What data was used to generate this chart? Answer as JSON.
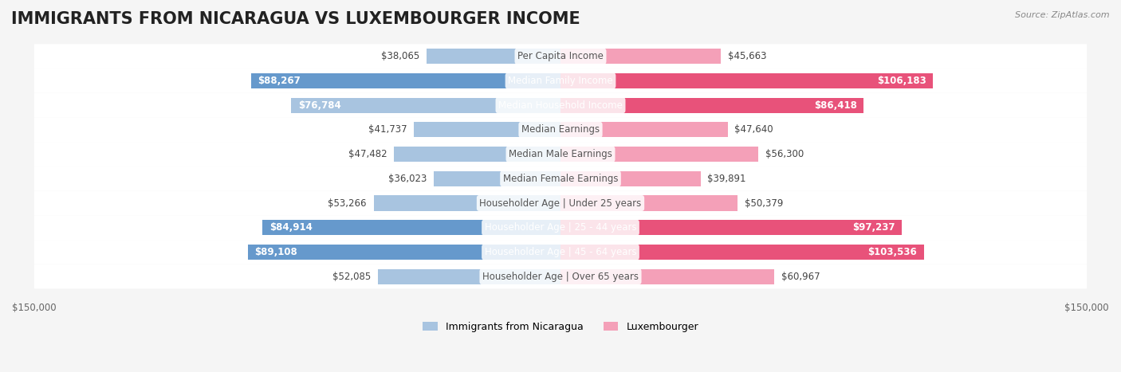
{
  "title": "IMMIGRANTS FROM NICARAGUA VS LUXEMBOURGER INCOME",
  "source": "Source: ZipAtlas.com",
  "categories": [
    "Per Capita Income",
    "Median Family Income",
    "Median Household Income",
    "Median Earnings",
    "Median Male Earnings",
    "Median Female Earnings",
    "Householder Age | Under 25 years",
    "Householder Age | 25 - 44 years",
    "Householder Age | 45 - 64 years",
    "Householder Age | Over 65 years"
  ],
  "nicaragua_values": [
    38065,
    88267,
    76784,
    41737,
    47482,
    36023,
    53266,
    84914,
    89108,
    52085
  ],
  "luxembourger_values": [
    45663,
    106183,
    86418,
    47640,
    56300,
    39891,
    50379,
    97237,
    103536,
    60967
  ],
  "nicaragua_labels": [
    "$38,065",
    "$88,267",
    "$76,784",
    "$41,737",
    "$47,482",
    "$36,023",
    "$53,266",
    "$84,914",
    "$89,108",
    "$52,085"
  ],
  "luxembourger_labels": [
    "$45,663",
    "$106,183",
    "$86,418",
    "$47,640",
    "$56,300",
    "$39,891",
    "$50,379",
    "$97,237",
    "$103,536",
    "$60,967"
  ],
  "nicaragua_color_light": "#a8c4e0",
  "nicaragua_color_dark": "#6699cc",
  "luxembourger_color_light": "#f4a0b8",
  "luxembourger_color_dark": "#e8527a",
  "max_value": 150000,
  "x_ticks": [
    -150000,
    150000
  ],
  "x_tick_labels": [
    "$150,000",
    "$150,000"
  ],
  "background_color": "#f5f5f5",
  "bar_bg_color": "#e8e8e8",
  "title_fontsize": 15,
  "label_fontsize": 8.5,
  "category_fontsize": 8.5,
  "legend_fontsize": 9,
  "source_fontsize": 8
}
